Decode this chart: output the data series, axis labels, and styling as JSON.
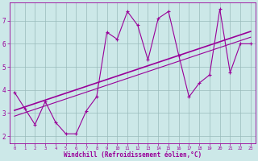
{
  "x": [
    0,
    1,
    2,
    3,
    4,
    5,
    6,
    7,
    8,
    9,
    10,
    11,
    12,
    13,
    14,
    15,
    16,
    17,
    18,
    19,
    20,
    21,
    22,
    23
  ],
  "y": [
    3.9,
    3.2,
    2.5,
    3.5,
    2.6,
    2.1,
    2.1,
    3.1,
    3.7,
    6.5,
    6.2,
    7.4,
    6.8,
    5.3,
    7.1,
    7.4,
    5.5,
    3.7,
    4.3,
    4.65,
    7.5,
    4.75,
    6.0,
    6.0
  ],
  "line_color": "#990099",
  "marker": "+",
  "bg_color": "#cce8e8",
  "grid_color": "#99bbbb",
  "xlabel": "Windchill (Refroidissement éolien,°C)",
  "xlabel_color": "#990099",
  "tick_color": "#990099",
  "xlim": [
    -0.5,
    23.5
  ],
  "ylim": [
    1.7,
    7.8
  ],
  "yticks": [
    2,
    3,
    4,
    5,
    6,
    7
  ],
  "xticks": [
    0,
    1,
    2,
    3,
    4,
    5,
    6,
    7,
    8,
    9,
    10,
    11,
    12,
    13,
    14,
    15,
    16,
    17,
    18,
    19,
    20,
    21,
    22,
    23
  ],
  "reg_line_start_x": 0,
  "reg_line_end_x": 23
}
